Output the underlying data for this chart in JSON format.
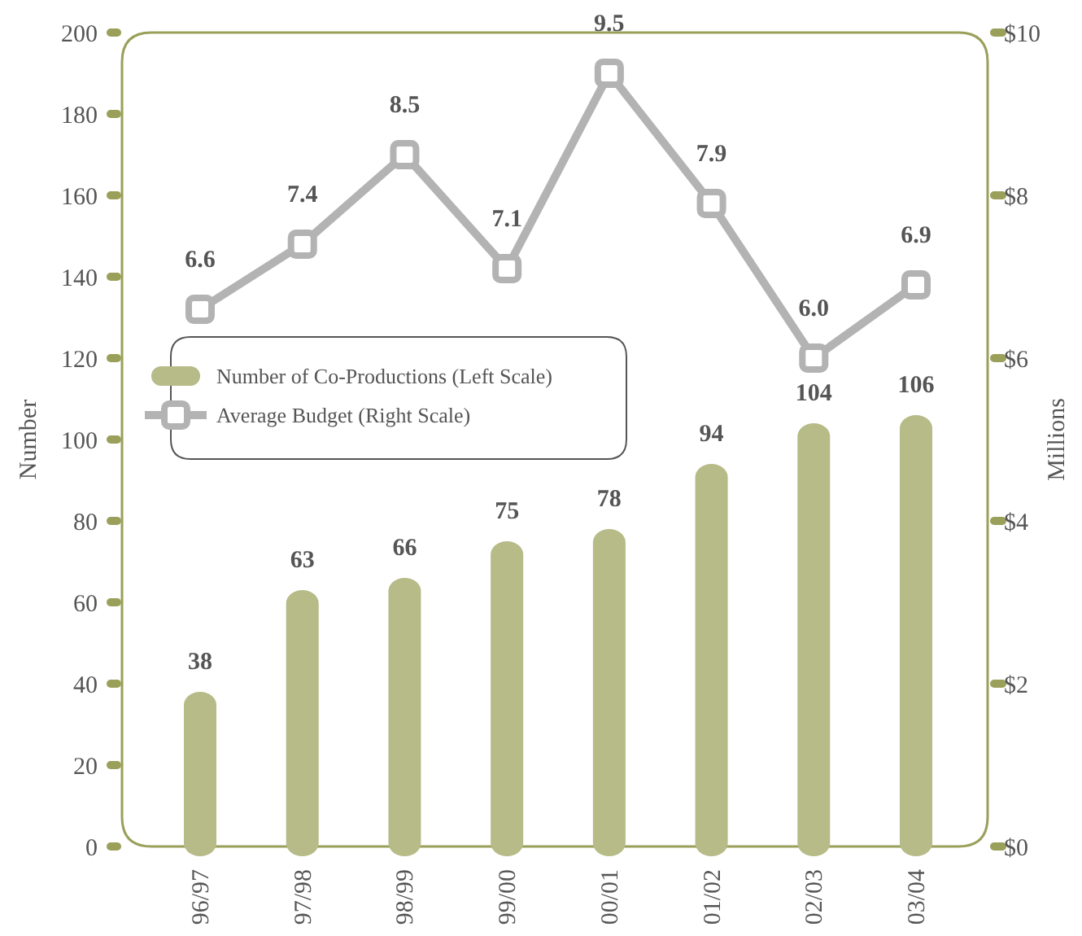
{
  "chart_data": {
    "type": "bar",
    "categories": [
      "96/97",
      "97/98",
      "98/99",
      "99/00",
      "00/01",
      "01/02",
      "02/03",
      "03/04"
    ],
    "series": [
      {
        "name": "Number of Co-Productions (Left Scale)",
        "color": "#b6bb87",
        "values": [
          38,
          63,
          66,
          75,
          78,
          94,
          104,
          106
        ],
        "value_labels": [
          "38",
          "63",
          "66",
          "75",
          "78",
          "94",
          "104",
          "106"
        ]
      },
      {
        "name": "Average Budget (Right Scale)",
        "type": "line",
        "axis": "y2",
        "color": "#b3b3b3",
        "marker": "square",
        "values": [
          6.6,
          7.4,
          8.5,
          7.1,
          9.5,
          7.9,
          6.0,
          6.9
        ],
        "value_labels": [
          "6.6",
          "7.4",
          "8.5",
          "7.1",
          "9.5",
          "7.9",
          "6.0",
          "6.9"
        ]
      }
    ],
    "ylabel": "Number",
    "y2label": "Millions",
    "ylim": [
      0,
      200
    ],
    "yticks": [
      0,
      20,
      40,
      60,
      80,
      100,
      120,
      140,
      160,
      180,
      200
    ],
    "y2lim": [
      0,
      10
    ],
    "y2ticks": [
      {
        "value": 0,
        "label": "$0"
      },
      {
        "value": 2,
        "label": "$2"
      },
      {
        "value": 4,
        "label": "$4"
      },
      {
        "value": 6,
        "label": "$6"
      },
      {
        "value": 8,
        "label": "$8"
      },
      {
        "value": 10,
        "label": "$10"
      }
    ],
    "legend": "left",
    "grid": false
  }
}
